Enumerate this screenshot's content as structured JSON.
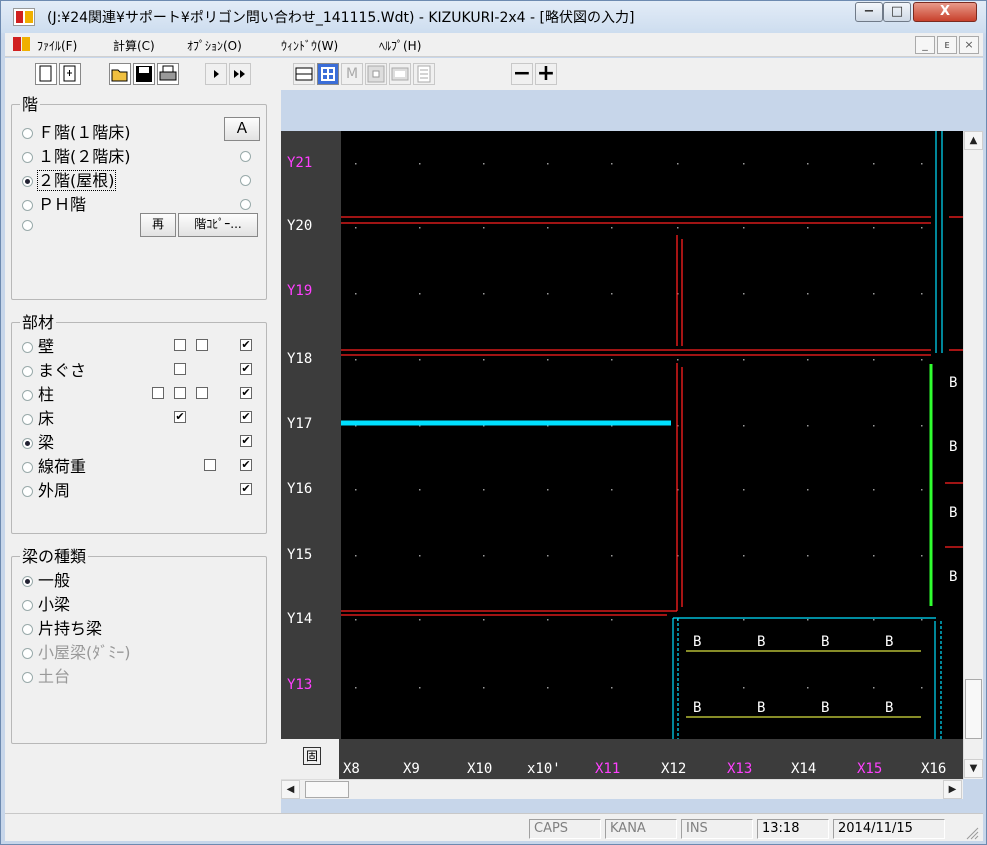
{
  "window": {
    "title": "(J:¥24関連¥サポート¥ポリゴン問い合わせ_141115.Wdt) - KIZUKURI-2x4 - [略伏図の入力]",
    "controls": {
      "minimize": "−",
      "maximize": "□",
      "close": "X"
    }
  },
  "menu": {
    "items": [
      "ﾌｧｲﾙ(F)",
      "計算(C)",
      "ｵﾌﾟｼｮﾝ(O)",
      "ｳｨﾝﾄﾞｳ(W)",
      "ﾍﾙﾌﾟ(H)"
    ],
    "mdi": {
      "minimize": "_",
      "restore": "ᴇ",
      "close": "×"
    }
  },
  "toolbar": {
    "icons": [
      "new-icon",
      "template-icon",
      "open-icon",
      "save-icon",
      "print-icon",
      "step-icon",
      "fast-forward-icon",
      "layout-icon",
      "grid-icon",
      "m-icon",
      "small-icon",
      "panel-icon",
      "list-icon",
      "zoom-out-icon",
      "zoom-in-icon"
    ],
    "m_label": "M",
    "zoom_out": "−",
    "zoom_in": "+"
  },
  "floors": {
    "title": "階",
    "items": [
      {
        "label": "Ｆ階(１階床)",
        "selected": false
      },
      {
        "label": "１階(２階床)",
        "selected": false
      },
      {
        "label": "２階(屋根)",
        "selected": true
      },
      {
        "label": "ＰＨ階",
        "selected": false
      },
      {
        "label": "",
        "selected": false
      }
    ],
    "a_button": "Ａ",
    "re_button": "再",
    "copy_button": "階ｺﾋﾟｰ..."
  },
  "members": {
    "title": "部材",
    "items": [
      {
        "label": "壁",
        "selected": false
      },
      {
        "label": "まぐさ",
        "selected": false
      },
      {
        "label": "柱",
        "selected": false
      },
      {
        "label": "床",
        "selected": false
      },
      {
        "label": "梁",
        "selected": true
      },
      {
        "label": "線荷重",
        "selected": false
      },
      {
        "label": "外周",
        "selected": false
      }
    ],
    "check_mark": "✔"
  },
  "beam_types": {
    "title": "梁の種類",
    "items": [
      {
        "label": "一般",
        "selected": true,
        "enabled": true
      },
      {
        "label": "小梁",
        "selected": false,
        "enabled": true
      },
      {
        "label": "片持ち梁",
        "selected": false,
        "enabled": true
      },
      {
        "label": "小屋梁(ﾀﾞﾐｰ)",
        "selected": false,
        "enabled": false
      },
      {
        "label": "土台",
        "selected": false,
        "enabled": false
      }
    ]
  },
  "grid": {
    "y_labels": [
      {
        "label": "Y21",
        "color": "#ff40ff"
      },
      {
        "label": "Y20",
        "color": "#ffffff"
      },
      {
        "label": "Y19",
        "color": "#ff40ff"
      },
      {
        "label": "Y18",
        "color": "#ffffff"
      },
      {
        "label": "Y17",
        "color": "#ffffff"
      },
      {
        "label": "Y16",
        "color": "#ffffff"
      },
      {
        "label": "Y15",
        "color": "#ffffff"
      },
      {
        "label": "Y14",
        "color": "#ffffff"
      },
      {
        "label": "Y13",
        "color": "#ff40ff"
      }
    ],
    "x_labels": [
      {
        "label": "X8",
        "color": "#ffffff"
      },
      {
        "label": "X9",
        "color": "#ffffff"
      },
      {
        "label": "X10",
        "color": "#ffffff"
      },
      {
        "label": "x10'",
        "color": "#ffffff"
      },
      {
        "label": "X11",
        "color": "#ff40ff"
      },
      {
        "label": "X12",
        "color": "#ffffff"
      },
      {
        "label": "X13",
        "color": "#ff40ff"
      },
      {
        "label": "X14",
        "color": "#ffffff"
      },
      {
        "label": "X15",
        "color": "#ff40ff"
      },
      {
        "label": "X16",
        "color": "#ffffff"
      }
    ],
    "beam_letter": "B",
    "corner_label": "固"
  },
  "scroll": {
    "up": "▲",
    "down": "▼",
    "left": "◀",
    "right": "▶"
  },
  "status": {
    "caps": "CAPS",
    "kana": "KANA",
    "ins": "INS",
    "time": "13:18",
    "date": "2014/11/15"
  }
}
